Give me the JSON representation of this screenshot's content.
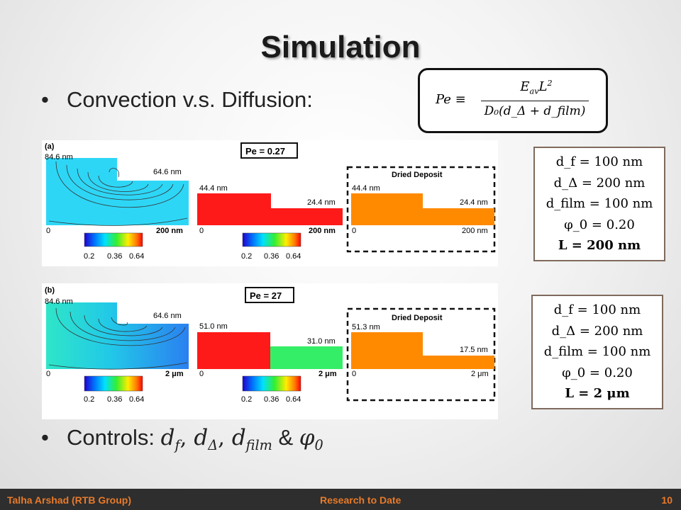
{
  "slide": {
    "title": "Simulation",
    "bullet1": "Convection v.s. Diffusion:",
    "bullet2_prefix": "Controls: ",
    "bullet2_terms": [
      "d",
      "f",
      ", ",
      "d",
      "Δ",
      ", ",
      "d",
      "film",
      " & ",
      "φ",
      "0"
    ],
    "bullet_symbol": "•"
  },
  "formula": {
    "lhs": "Pe ≡",
    "numerator": "E",
    "numerator_sub": "av",
    "numerator_rest": "L",
    "numerator_sup": "2",
    "denominator": "D₀(d_Δ + d_film)"
  },
  "figure_a": {
    "label": "(a)",
    "pe": "Pe = 0.27",
    "panel1_top_left": "84.6 nm",
    "panel1_top_right": "64.6 nm",
    "panel1_origin": "0",
    "panel1_end": "200 nm",
    "panel2_left": "44.4 nm",
    "panel2_right": "24.4 nm",
    "panel2_origin": "0",
    "panel2_end": "200 nm",
    "panel3_title": "Dried Deposit",
    "panel3_left": "44.4 nm",
    "panel3_right": "24.4 nm",
    "panel3_origin": "0",
    "panel3_end": "200 nm",
    "colorbar_ticks": [
      "0.2",
      "0.36",
      "0.64"
    ]
  },
  "figure_b": {
    "label": "(b)",
    "pe": "Pe = 27",
    "panel1_top_left": "84.6 nm",
    "panel1_top_right": "64.6 nm",
    "panel1_origin": "0",
    "panel1_end": "2 μm",
    "panel2_left": "51.0 nm",
    "panel2_right": "31.0 nm",
    "panel2_origin": "0",
    "panel2_end": "2 μm",
    "panel3_title": "Dried Deposit",
    "panel3_left": "51.3 nm",
    "panel3_right": "17.5 nm",
    "panel3_origin": "0",
    "panel3_end": "2 μm",
    "colorbar_ticks": [
      "0.2",
      "0.36",
      "0.64"
    ]
  },
  "params_a": [
    "d_f = 100 nm",
    "d_Δ = 200 nm",
    "d_film = 100 nm",
    "φ_0 = 0.20",
    "L = 200 nm"
  ],
  "params_b": [
    "d_f = 100 nm",
    "d_Δ = 200 nm",
    "d_film = 100 nm",
    "φ_0 = 0.20",
    "L = 2 μm"
  ],
  "footer": {
    "left": "Talha Arshad (RTB Group)",
    "center": "Research to Date",
    "page": "10"
  },
  "colors": {
    "footer_bg": "#2e2e2e",
    "footer_text": "#e87a2a",
    "deposit_orange": "#ff8a00",
    "red": "#ff1a1a",
    "green": "#33ee66",
    "cyan": "#22d8f8"
  }
}
